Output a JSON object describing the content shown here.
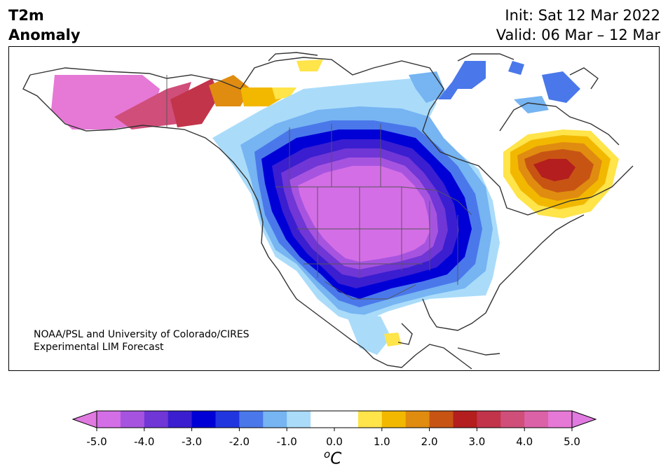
{
  "header": {
    "title_line1": "T2m",
    "title_line2": "Anomaly",
    "init_text": "Init: Sat 12 Mar 2022",
    "valid_text": "Valid: 06 Mar – 12 Mar"
  },
  "credit": {
    "line1": "NOAA/PSL and University of Colorado/CIRES",
    "line2": "Experimental LIM Forecast"
  },
  "colorbar": {
    "unit_base": "C",
    "unit_sup": "o",
    "ticks": [
      "-5.0",
      "-4.0",
      "-3.0",
      "-2.0",
      "-1.0",
      "0.0",
      "1.0",
      "2.0",
      "3.0",
      "4.0",
      "5.0"
    ],
    "colors": [
      "#d46ee6",
      "#a654e0",
      "#7036d6",
      "#3a1ed0",
      "#0000d6",
      "#2236e0",
      "#4a78ea",
      "#76b4f2",
      "#aadcfa",
      "#ffffff",
      "#ffffff",
      "#ffe44a",
      "#f2b800",
      "#e08c10",
      "#c85414",
      "#b41e1e",
      "#c2344a",
      "#d04e7a",
      "#dc62a8",
      "#e678d6"
    ],
    "under_color": "#e07ae0",
    "over_color": "#e07ae0"
  },
  "map": {
    "region": "North America",
    "variable": "2m temperature anomaly",
    "anomaly_regions": [
      {
        "name": "Northern Plains / Rockies",
        "anomaly_c": "-5.0"
      },
      {
        "name": "Great Lakes / Ohio Valley",
        "anomaly_c": "-2.0"
      },
      {
        "name": "Alaska",
        "anomaly_c": "5.0"
      },
      {
        "name": "Yukon",
        "anomaly_c": "3.0"
      },
      {
        "name": "Quebec / Labrador",
        "anomaly_c": "3.0"
      }
    ]
  }
}
